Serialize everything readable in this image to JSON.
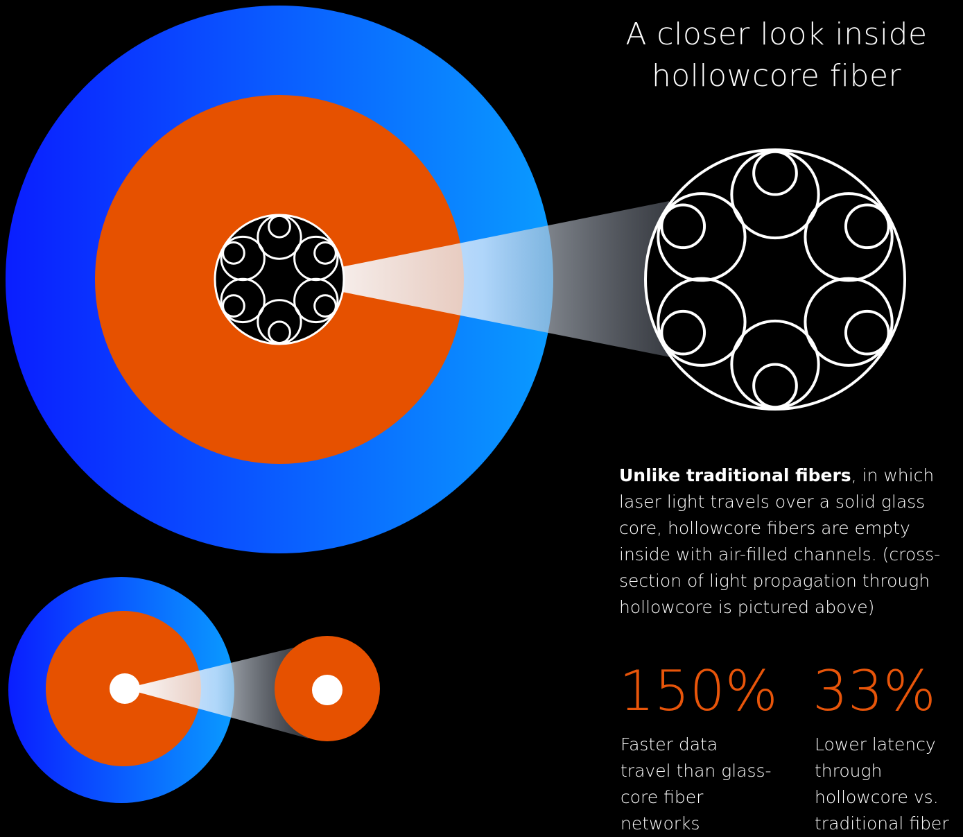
{
  "header": {
    "title": "A closer look inside hollowcore fiber"
  },
  "description": {
    "bold": "Unlike traditional fibers",
    "text": ", in which laser light travels over a solid glass core, hollowcore fibers are empty inside with air-filled channels. (cross-section of light propagation through hollowcore is pictured above)"
  },
  "stats": [
    {
      "figure": "150%",
      "label": "Faster data travel than glass-core fiber networks"
    },
    {
      "figure": "33%",
      "label": "Lower latency through hollowcore vs. traditional fiber"
    }
  ]
}
